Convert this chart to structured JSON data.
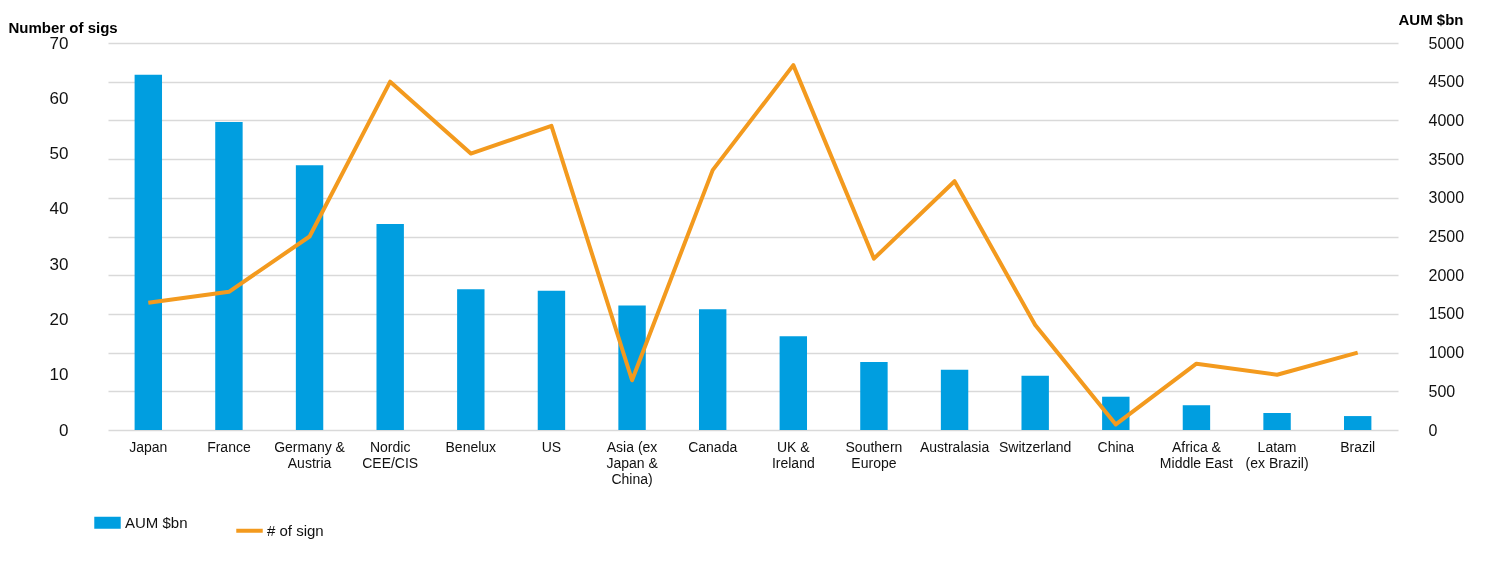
{
  "chart_data": {
    "type": "bar",
    "ylabel": "Number of sigs",
    "y2label": "AUM $bn",
    "categories": [
      "Japan",
      "France",
      "Germany &\nAustria",
      "Nordic\nCEE/CIS",
      "Benelux",
      "US",
      "Asia (ex\nJapan &\nChina)",
      "Canada",
      "UK &\nIreland",
      "Southern\nEurope",
      "Australasia",
      "Switzerland",
      "China",
      "Africa &\nMiddle East",
      "Latam\n(ex Brazil)",
      "Brazil"
    ],
    "series": [
      {
        "name": "AUM $bn",
        "axis": "y2",
        "color": "#009ee0",
        "values": [
          4590,
          3980,
          3420,
          2660,
          1820,
          1800,
          1610,
          1560,
          1210,
          880,
          780,
          700,
          430,
          320,
          220,
          180
        ]
      },
      {
        "name": "# of sign",
        "type": "line",
        "axis": "y",
        "color": "#f39a1e",
        "values": [
          23,
          25,
          35,
          63,
          50,
          55,
          9,
          47,
          66,
          31,
          45,
          19,
          1,
          12,
          10,
          14
        ]
      }
    ],
    "ylim": [
      0,
      70
    ],
    "yticks": [
      0,
      10,
      20,
      30,
      40,
      50,
      60,
      70
    ],
    "y2lim": [
      0,
      5000
    ],
    "y2ticks": [
      0,
      500,
      1000,
      1500,
      2000,
      2500,
      3000,
      3500,
      4000,
      4500,
      5000
    ],
    "grid": "y2",
    "legend": "bottom left",
    "marker": "none"
  }
}
